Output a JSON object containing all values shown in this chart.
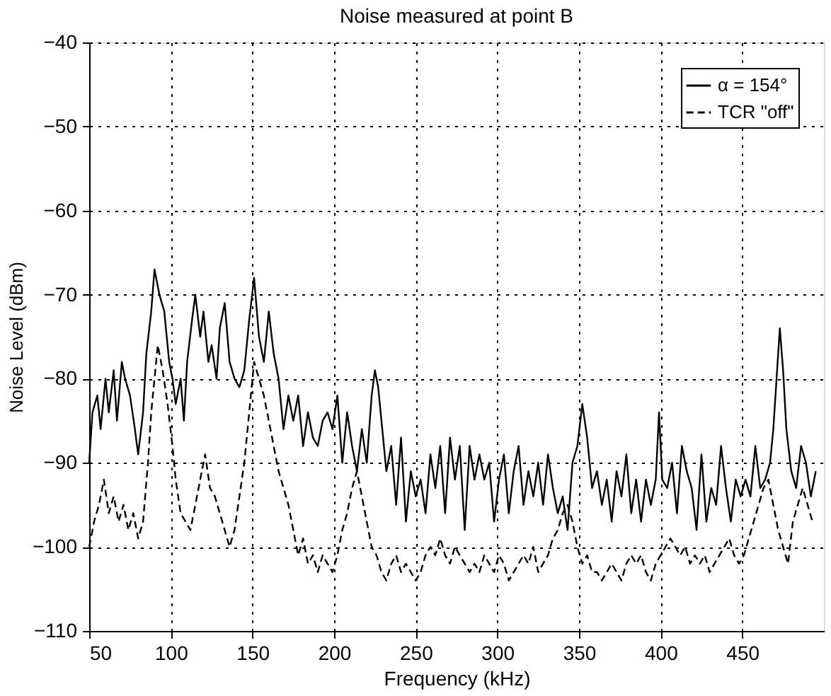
{
  "chart_data": {
    "type": "line",
    "title": "Noise measured at point B",
    "xlabel": "Frequency (kHz)",
    "ylabel": "Noise Level (dBm)",
    "xlim": [
      50,
      500
    ],
    "xticks": [
      50,
      100,
      150,
      200,
      250,
      300,
      350,
      400,
      450
    ],
    "ylim": [
      -110,
      -40
    ],
    "yticks": [
      -110,
      -100,
      -90,
      -80,
      -70,
      -60,
      -50,
      -40
    ],
    "grid": true,
    "legend": "top right",
    "series": [
      {
        "name": "α = 154°",
        "color": "#000000",
        "line_style": "solid",
        "x": [
          50,
          52,
          55,
          57,
          60,
          62,
          65,
          67,
          70,
          72,
          75,
          78,
          80,
          83,
          85,
          88,
          90,
          93,
          96,
          99,
          101,
          103,
          106,
          108,
          110,
          113,
          115,
          118,
          120,
          123,
          125,
          128,
          130,
          133,
          136,
          139,
          142,
          145,
          148,
          151,
          154,
          157,
          160,
          163,
          166,
          169,
          172,
          175,
          178,
          181,
          184,
          187,
          190,
          193,
          196,
          199,
          202,
          205,
          208,
          211,
          214,
          217,
          220,
          223,
          225,
          227,
          229,
          232,
          235,
          238,
          241,
          244,
          247,
          250,
          253,
          256,
          259,
          262,
          265,
          268,
          271,
          274,
          277,
          280,
          283,
          286,
          289,
          292,
          295,
          298,
          301,
          304,
          307,
          310,
          313,
          316,
          319,
          322,
          325,
          328,
          331,
          334,
          337,
          340,
          343,
          346,
          349,
          352,
          355,
          358,
          361,
          364,
          367,
          370,
          373,
          376,
          379,
          382,
          385,
          388,
          391,
          394,
          397,
          399,
          401,
          404,
          407,
          410,
          413,
          416,
          419,
          422,
          425,
          428,
          431,
          434,
          437,
          440,
          443,
          446,
          449,
          452,
          455,
          458,
          461,
          464,
          467,
          469,
          471,
          473,
          475,
          477,
          480,
          483,
          486,
          489,
          492,
          495
        ],
        "values": [
          -90,
          -84,
          -82,
          -86,
          -80,
          -84,
          -79,
          -85,
          -78,
          -80,
          -82,
          -86,
          -89,
          -84,
          -77,
          -72,
          -67,
          -70,
          -72,
          -78,
          -80,
          -83,
          -80,
          -85,
          -78,
          -73,
          -70,
          -75,
          -72,
          -78,
          -76,
          -80,
          -74,
          -71,
          -78,
          -80,
          -81,
          -79,
          -73,
          -68,
          -75,
          -78,
          -72,
          -77,
          -80,
          -86,
          -82,
          -85,
          -82,
          -88,
          -84,
          -87,
          -88,
          -85,
          -84,
          -86,
          -82,
          -90,
          -84,
          -88,
          -91,
          -86,
          -90,
          -82,
          -79,
          -81,
          -85,
          -91,
          -88,
          -95,
          -87,
          -97,
          -91,
          -94,
          -92,
          -96,
          -89,
          -93,
          -88,
          -96,
          -87,
          -92,
          -88,
          -98,
          -88,
          -92,
          -89,
          -92,
          -90,
          -97,
          -92,
          -89,
          -96,
          -91,
          -88,
          -95,
          -91,
          -94,
          -90,
          -95,
          -89,
          -93,
          -96,
          -94,
          -98,
          -90,
          -88,
          -83,
          -87,
          -93,
          -91,
          -95,
          -92,
          -97,
          -91,
          -94,
          -89,
          -96,
          -92,
          -97,
          -92,
          -95,
          -92,
          -84,
          -92,
          -93,
          -90,
          -96,
          -88,
          -91,
          -93,
          -98,
          -89,
          -97,
          -93,
          -95,
          -88,
          -93,
          -97,
          -92,
          -94,
          -92,
          -94,
          -88,
          -93,
          -92,
          -90,
          -86,
          -80,
          -74,
          -79,
          -86,
          -91,
          -93,
          -88,
          -90,
          -94,
          -91
        ]
      },
      {
        "name": "TCR \"off\"",
        "color": "#000000",
        "line_style": "dashed",
        "x": [
          50,
          53,
          56,
          59,
          62,
          65,
          68,
          71,
          74,
          77,
          80,
          83,
          86,
          88,
          90,
          92,
          95,
          98,
          101,
          103,
          106,
          109,
          112,
          115,
          118,
          121,
          124,
          127,
          130,
          133,
          136,
          139,
          142,
          145,
          148,
          151,
          154,
          157,
          160,
          163,
          166,
          169,
          172,
          175,
          178,
          181,
          184,
          187,
          190,
          193,
          196,
          199,
          202,
          205,
          208,
          211,
          214,
          217,
          220,
          223,
          226,
          229,
          232,
          235,
          238,
          241,
          244,
          247,
          250,
          253,
          256,
          259,
          262,
          265,
          268,
          271,
          274,
          277,
          280,
          283,
          286,
          289,
          292,
          295,
          298,
          301,
          304,
          307,
          310,
          313,
          316,
          319,
          322,
          325,
          328,
          331,
          334,
          337,
          340,
          343,
          346,
          349,
          352,
          355,
          358,
          361,
          364,
          367,
          370,
          373,
          376,
          379,
          382,
          385,
          388,
          391,
          394,
          397,
          400,
          403,
          406,
          409,
          412,
          415,
          418,
          421,
          424,
          427,
          430,
          433,
          436,
          439,
          442,
          445,
          448,
          451,
          454,
          457,
          460,
          463,
          466,
          469,
          472,
          475,
          478,
          481,
          484,
          487,
          490,
          493
        ],
        "values": [
          -100,
          -97,
          -95,
          -92,
          -96,
          -94,
          -97,
          -95,
          -98,
          -96,
          -99,
          -97,
          -90,
          -84,
          -80,
          -76,
          -79,
          -83,
          -88,
          -92,
          -96,
          -97,
          -98,
          -95,
          -92,
          -89,
          -93,
          -94,
          -96,
          -98,
          -100,
          -98,
          -94,
          -90,
          -84,
          -78,
          -80,
          -82,
          -85,
          -88,
          -91,
          -93,
          -95,
          -98,
          -101,
          -99,
          -102,
          -101,
          -103,
          -101,
          -102,
          -103,
          -101,
          -98,
          -96,
          -93,
          -91,
          -94,
          -97,
          -100,
          -101,
          -103,
          -104,
          -102,
          -101,
          -103,
          -102,
          -103,
          -104,
          -103,
          -101,
          -100,
          -101,
          -99,
          -101,
          -102,
          -100,
          -101,
          -102,
          -103,
          -102,
          -103,
          -101,
          -102,
          -103,
          -101,
          -102,
          -104,
          -103,
          -102,
          -101,
          -102,
          -100,
          -103,
          -102,
          -101,
          -99,
          -98,
          -96,
          -95,
          -97,
          -100,
          -102,
          -101,
          -103,
          -103,
          -104,
          -103,
          -102,
          -103,
          -104,
          -102,
          -101,
          -102,
          -101,
          -103,
          -104,
          -102,
          -101,
          -100,
          -99,
          -100,
          -101,
          -100,
          -102,
          -101,
          -102,
          -101,
          -103,
          -102,
          -101,
          -100,
          -99,
          -101,
          -102,
          -101,
          -99,
          -97,
          -95,
          -93,
          -92,
          -95,
          -98,
          -100,
          -102,
          -97,
          -95,
          -93,
          -95,
          -97
        ]
      }
    ]
  }
}
